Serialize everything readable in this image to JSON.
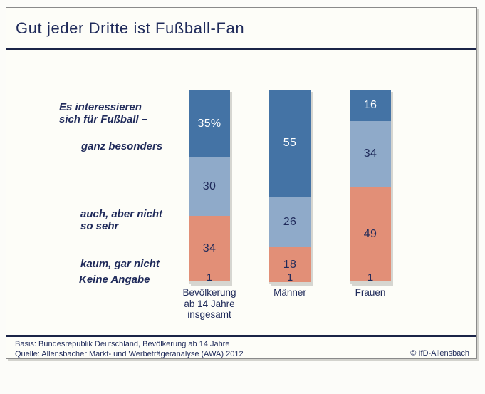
{
  "page": {
    "title": "Gut jeder Dritte ist Fußball-Fan",
    "footer": {
      "basis": "Basis: Bundesrepublik Deutschland, Bevölkerung ab 14 Jahre",
      "quelle": "Quelle: Allensbacher Markt- und Werbeträgeranalyse (AWA) 2012",
      "copyright": "© IfD-Allensbach"
    }
  },
  "side_labels": {
    "intro_line1": "Es interessieren",
    "intro_line2": "sich für Fußball –",
    "ganz_besonders": "ganz besonders",
    "auch_line1": "auch, aber nicht",
    "auch_line2": "so sehr",
    "kaum": "kaum, gar nicht",
    "keine_angabe": "Keine Angabe"
  },
  "colors": {
    "navy_text": "#1f2a5a",
    "rule_line": "#1b2447",
    "page_background": "#fdfdf8",
    "segment_ganz": "#4473a5",
    "segment_auch": "#8faac9",
    "segment_kaum": "#e28f77",
    "segment_keine": "#d6d5cf",
    "value_on_dark": "#ffffff"
  },
  "chart_data": {
    "type": "bar",
    "subtype": "stacked-100-percent-column",
    "title": "Gut jeder Dritte ist Fußball-Fan",
    "question": "Es interessieren sich für Fußball –",
    "categories": [
      "Bevölkerung ab 14 Jahre insgesamt",
      "Männer",
      "Frauen"
    ],
    "category_label_lines": [
      [
        "Bevölkerung",
        "ab 14 Jahre",
        "insgesamt"
      ],
      [
        "Männer"
      ],
      [
        "Frauen"
      ]
    ],
    "series": [
      {
        "name": "ganz besonders",
        "values": [
          35,
          55,
          16
        ],
        "color": "#4473a5",
        "label_color": "#ffffff"
      },
      {
        "name": "auch, aber nicht so sehr",
        "values": [
          30,
          26,
          34
        ],
        "color": "#8faac9",
        "label_color": "#1f2a5a"
      },
      {
        "name": "kaum, gar nicht",
        "values": [
          34,
          18,
          49
        ],
        "color": "#e28f77",
        "label_color": "#1f2a5a"
      },
      {
        "name": "Keine Angabe",
        "values": [
          1,
          1,
          1
        ],
        "color": "#d6d5cf",
        "label_color": "#1f2a5a"
      }
    ],
    "value_labels": [
      [
        "35%",
        "30",
        "34",
        "1"
      ],
      [
        "55",
        "26",
        "18",
        "1"
      ],
      [
        "16",
        "34",
        "49",
        "1"
      ]
    ],
    "ylim": [
      0,
      100
    ],
    "unit": "percent",
    "grid": false,
    "legend_position": "none"
  }
}
